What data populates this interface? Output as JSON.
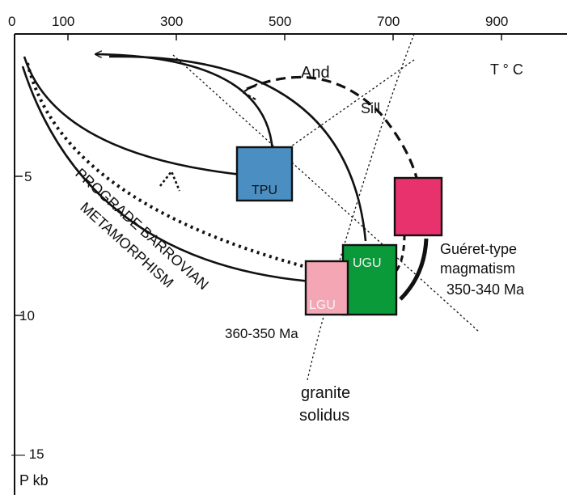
{
  "axes": {
    "x_ticks": [
      "0",
      "100",
      "300",
      "500",
      "700",
      "900"
    ],
    "x_label": "T ° C",
    "y_ticks": [
      "5",
      "10",
      "— 15"
    ],
    "y_label": "P kb"
  },
  "fields": {
    "andalusite": "And",
    "sillimanite": "Sill"
  },
  "boxes": {
    "tpu": "TPU",
    "ugu": "UGU",
    "lgu": "LGU"
  },
  "colors": {
    "tpu": "#4a8ec2",
    "ugu": "#0a9a3a",
    "lgu": "#f4a6b4",
    "gueret": "#e8326e"
  },
  "annotations": {
    "prograde_line1": "PROGRADE BARROVIAN",
    "prograde_line2": "METAMORPHISM",
    "age_lower": "360-350 Ma",
    "gueret_line1": "Guéret-type",
    "gueret_line2": "magmatism",
    "gueret_line3": "350-340 Ma",
    "solidus_line1": "granite",
    "solidus_line2": "solidus"
  }
}
